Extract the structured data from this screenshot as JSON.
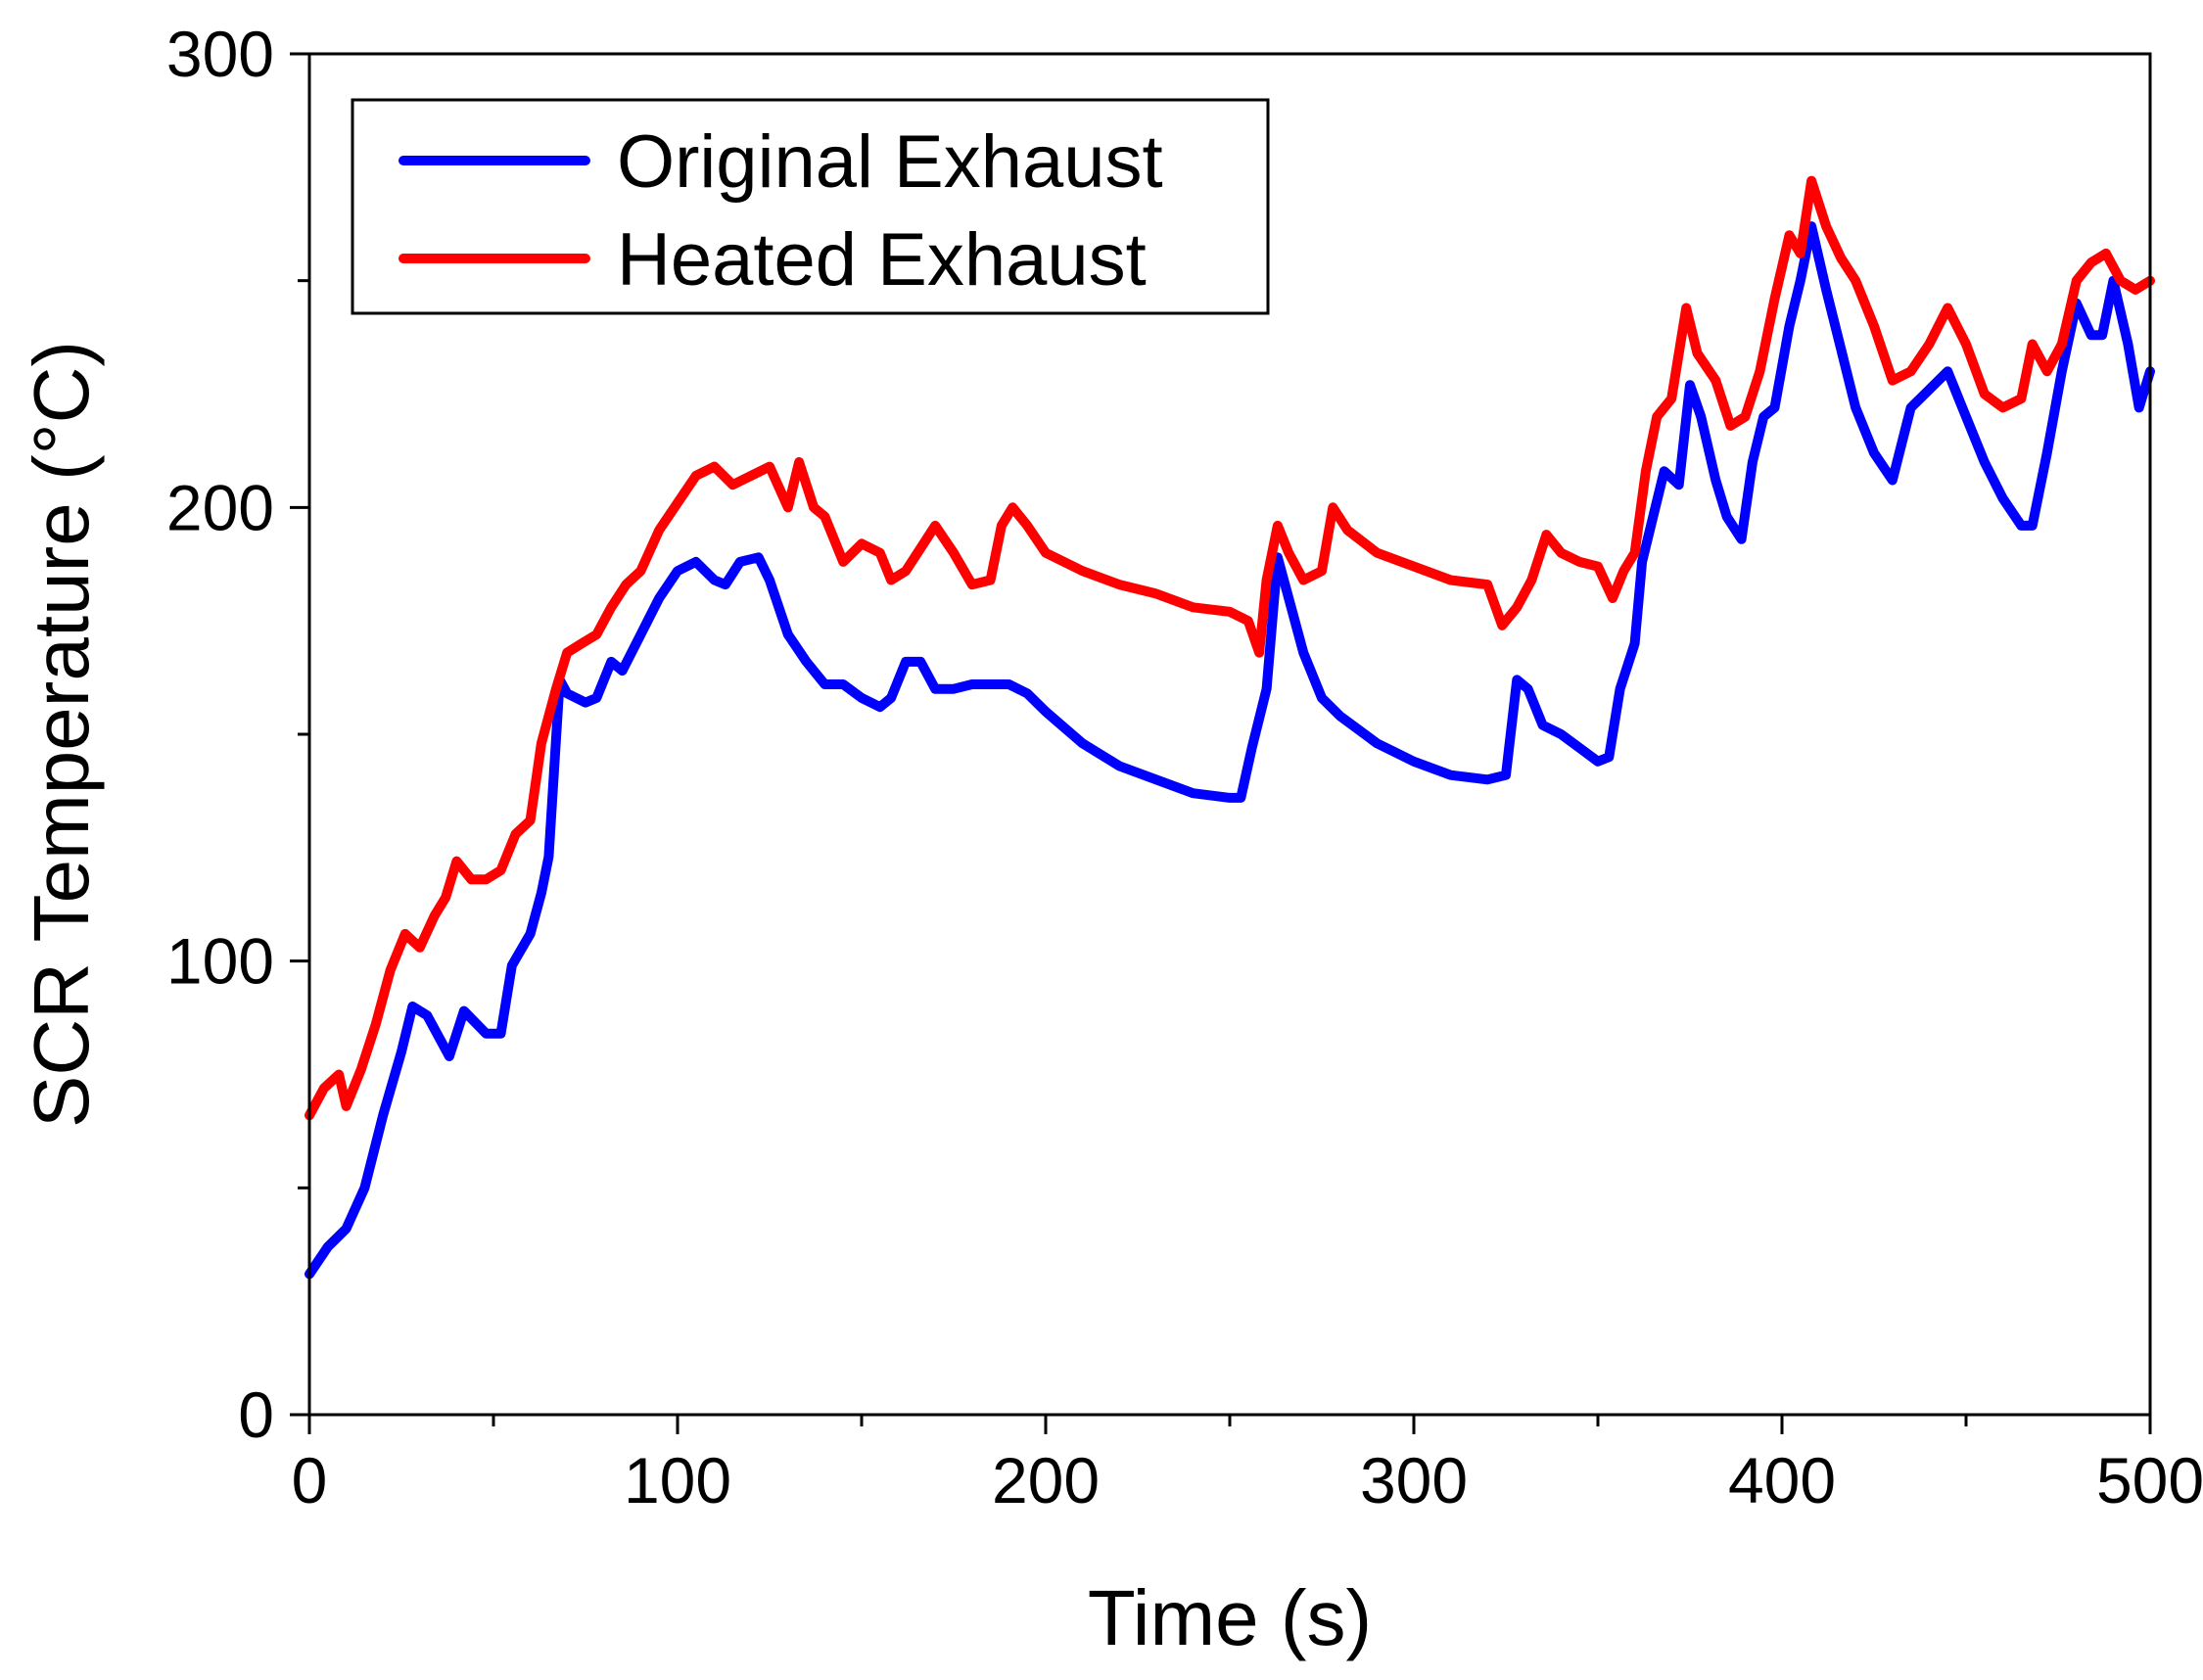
{
  "chart_data": {
    "type": "line",
    "xlabel": "Time (s)",
    "ylabel": "SCR Temperature (°C)",
    "xlim": [
      0,
      500
    ],
    "ylim": [
      0,
      300
    ],
    "x_ticks": [
      0,
      100,
      200,
      300,
      400,
      500
    ],
    "y_ticks": [
      0,
      100,
      200,
      300
    ],
    "x_tick_labels": [
      "0",
      "100",
      "200",
      "300",
      "400",
      "500"
    ],
    "y_tick_labels": [
      "0",
      "100",
      "200",
      "300"
    ],
    "grid": false,
    "legend_position": "top-left",
    "series": [
      {
        "name": "Original Exhaust",
        "color": "#0000ff",
        "x": [
          0,
          5,
          10,
          15,
          20,
          25,
          28,
          32,
          38,
          42,
          48,
          52,
          55,
          60,
          63,
          65,
          68,
          70,
          75,
          78,
          82,
          85,
          90,
          95,
          100,
          105,
          110,
          113,
          117,
          122,
          125,
          130,
          135,
          140,
          145,
          150,
          155,
          158,
          162,
          166,
          170,
          175,
          180,
          185,
          190,
          195,
          200,
          210,
          220,
          230,
          240,
          250,
          253,
          256,
          260,
          263,
          266,
          270,
          275,
          280,
          290,
          300,
          310,
          320,
          325,
          328,
          331,
          335,
          340,
          345,
          350,
          353,
          356,
          360,
          362,
          365,
          368,
          372,
          375,
          378,
          382,
          385,
          389,
          392,
          395,
          398,
          402,
          405,
          408,
          412,
          416,
          420,
          425,
          430,
          435,
          440,
          445,
          450,
          455,
          460,
          465,
          468,
          472,
          476,
          480,
          484,
          487,
          490,
          494,
          497,
          500
        ],
        "y": [
          31,
          37,
          41,
          50,
          66,
          80,
          90,
          88,
          79,
          89,
          84,
          84,
          99,
          106,
          115,
          123,
          162,
          159,
          157,
          158,
          166,
          164,
          172,
          180,
          186,
          188,
          184,
          183,
          188,
          189,
          184,
          172,
          166,
          161,
          161,
          158,
          156,
          158,
          166,
          166,
          160,
          160,
          161,
          161,
          161,
          159,
          155,
          148,
          143,
          140,
          137,
          136,
          136,
          147,
          160,
          189,
          180,
          168,
          158,
          154,
          148,
          144,
          141,
          140,
          141,
          162,
          160,
          152,
          150,
          147,
          144,
          145,
          160,
          170,
          188,
          198,
          208,
          205,
          227,
          220,
          206,
          198,
          193,
          210,
          220,
          222,
          240,
          250,
          262,
          248,
          235,
          222,
          212,
          206,
          222,
          226,
          230,
          220,
          210,
          202,
          196,
          196,
          212,
          230,
          245,
          238,
          238,
          250,
          236,
          222,
          230
        ]
      },
      {
        "name": "Heated Exhaust",
        "color": "#ff0000",
        "x": [
          0,
          4,
          8,
          10,
          14,
          18,
          22,
          26,
          30,
          34,
          37,
          40,
          44,
          48,
          52,
          56,
          60,
          63,
          65,
          67,
          70,
          74,
          78,
          82,
          86,
          90,
          95,
          100,
          105,
          110,
          115,
          120,
          125,
          130,
          133,
          137,
          140,
          145,
          150,
          155,
          158,
          162,
          166,
          170,
          175,
          180,
          185,
          188,
          191,
          195,
          200,
          210,
          220,
          230,
          240,
          250,
          255,
          258,
          260,
          263,
          266,
          270,
          275,
          278,
          282,
          290,
          300,
          310,
          320,
          324,
          328,
          332,
          336,
          340,
          345,
          350,
          354,
          357,
          360,
          363,
          366,
          370,
          374,
          377,
          382,
          386,
          390,
          394,
          398,
          402,
          405,
          408,
          412,
          416,
          420,
          425,
          430,
          435,
          440,
          445,
          450,
          455,
          460,
          465,
          468,
          472,
          476,
          480,
          484,
          488,
          492,
          496,
          500
        ],
        "y": [
          66,
          72,
          75,
          68,
          76,
          86,
          98,
          106,
          103,
          110,
          114,
          122,
          118,
          118,
          120,
          128,
          131,
          148,
          154,
          160,
          168,
          170,
          172,
          178,
          183,
          186,
          195,
          201,
          207,
          209,
          205,
          207,
          209,
          200,
          210,
          200,
          198,
          188,
          192,
          190,
          184,
          186,
          191,
          196,
          190,
          183,
          184,
          196,
          200,
          196,
          190,
          186,
          183,
          181,
          178,
          177,
          175,
          168,
          184,
          196,
          190,
          184,
          186,
          200,
          195,
          190,
          187,
          184,
          183,
          174,
          178,
          184,
          194,
          190,
          188,
          187,
          180,
          186,
          190,
          208,
          220,
          224,
          244,
          234,
          228,
          218,
          220,
          230,
          246,
          260,
          256,
          272,
          262,
          255,
          250,
          240,
          228,
          230,
          236,
          244,
          236,
          225,
          222,
          224,
          236,
          230,
          236,
          250,
          254,
          256,
          250,
          248,
          250
        ]
      }
    ]
  }
}
